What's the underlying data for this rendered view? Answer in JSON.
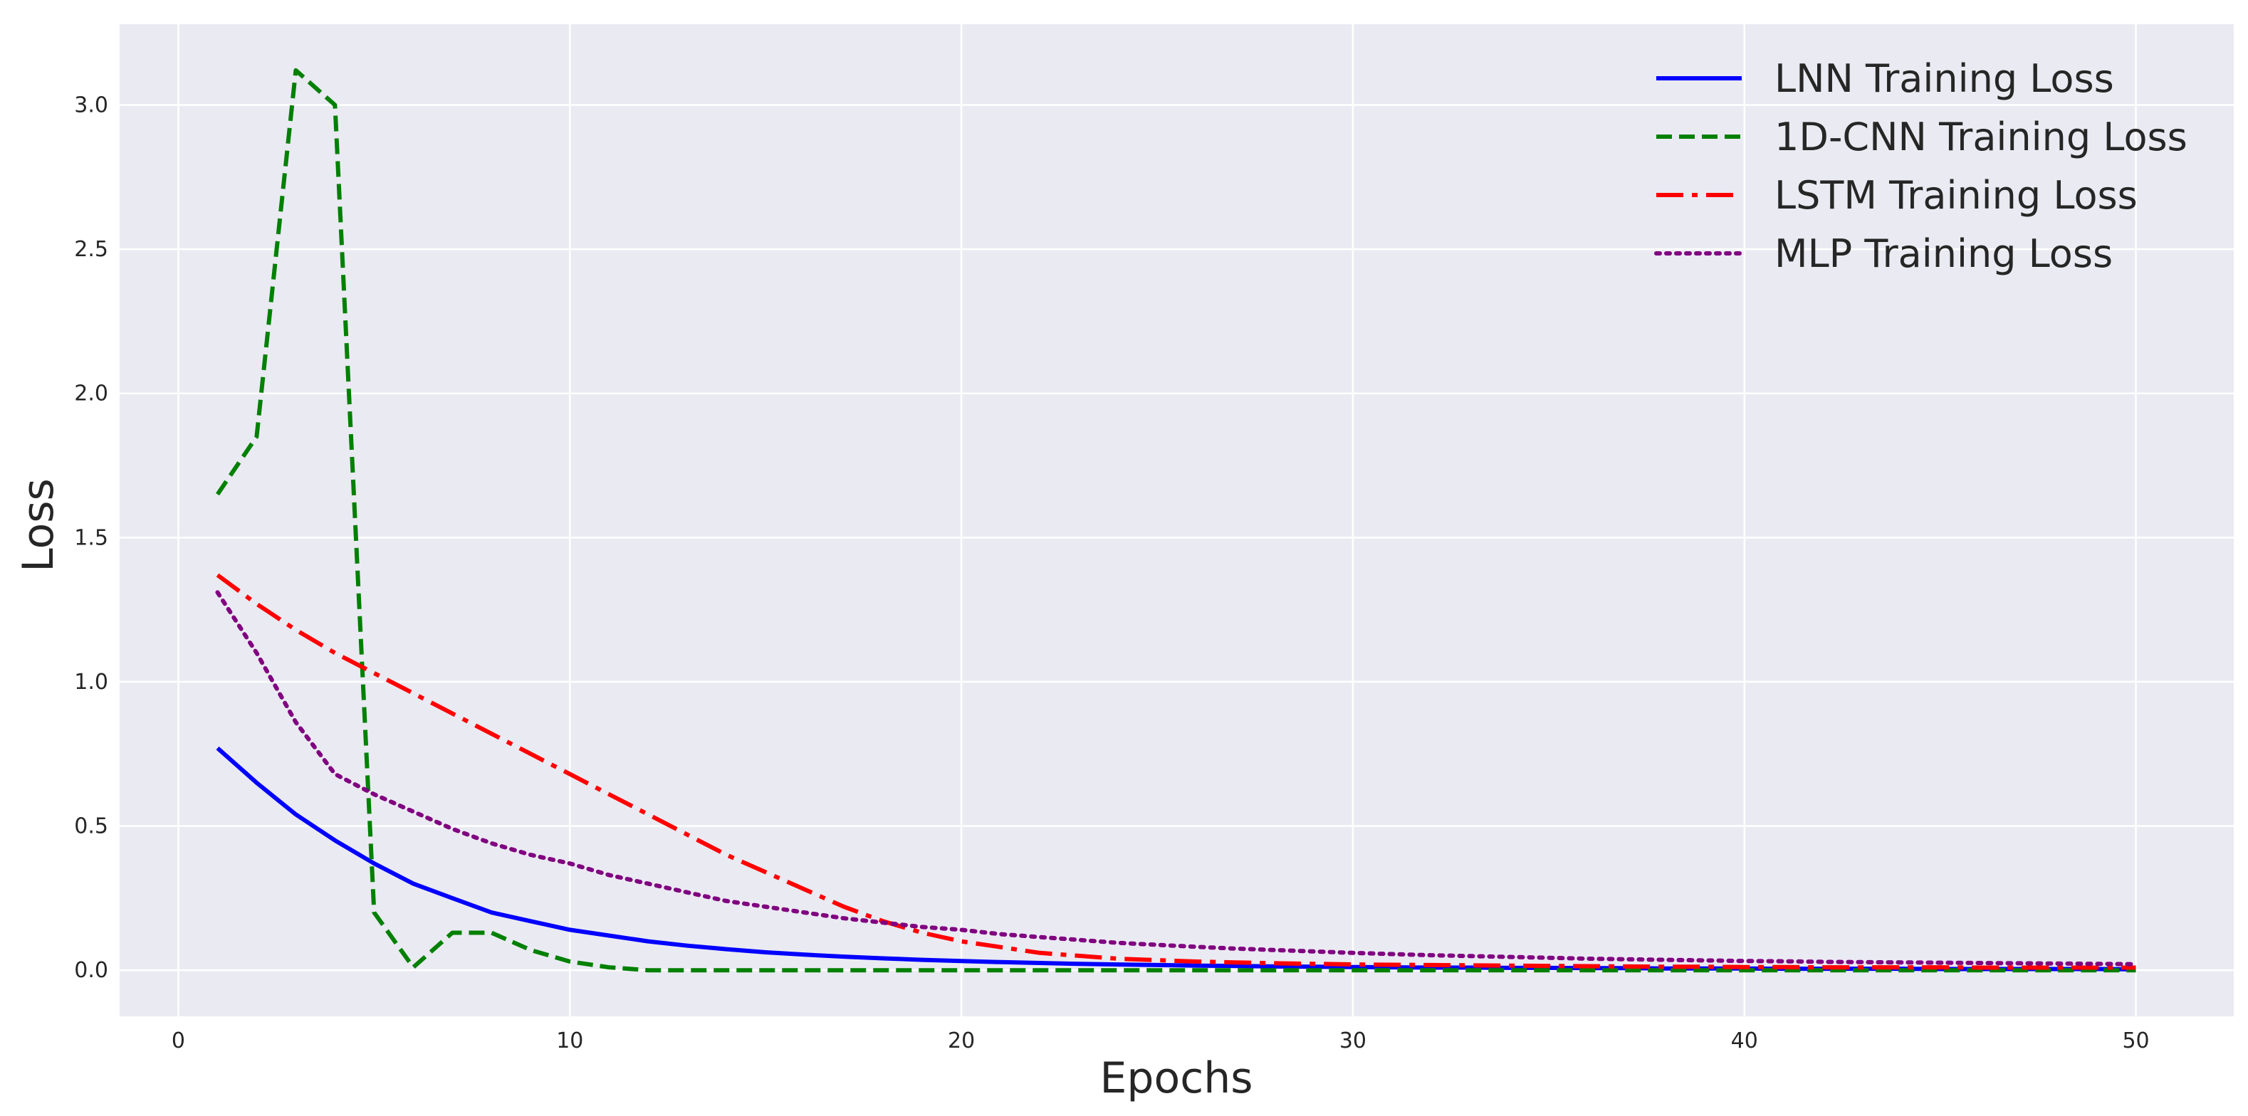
{
  "chart_data": {
    "type": "line",
    "title": "",
    "xlabel": "Epochs",
    "ylabel": "Loss",
    "xlim": [
      -1.5,
      52.5
    ],
    "ylim": [
      -0.16,
      3.28
    ],
    "xticks": [
      0,
      10,
      20,
      30,
      40,
      50
    ],
    "xtick_labels": [
      "0",
      "10",
      "20",
      "30",
      "40",
      "50"
    ],
    "yticks": [
      0.0,
      0.5,
      1.0,
      1.5,
      2.0,
      2.5,
      3.0
    ],
    "ytick_labels": [
      "0.0",
      "0.5",
      "1.0",
      "1.5",
      "2.0",
      "2.5",
      "3.0"
    ],
    "grid": true,
    "legend_position": "top-right",
    "background_color": "#eaeaf2",
    "grid_color": "#ffffff",
    "x": [
      1,
      2,
      3,
      4,
      5,
      6,
      7,
      8,
      9,
      10,
      11,
      12,
      13,
      14,
      15,
      16,
      17,
      18,
      19,
      20,
      21,
      22,
      23,
      24,
      25,
      26,
      27,
      28,
      29,
      30,
      31,
      32,
      33,
      34,
      35,
      36,
      37,
      38,
      39,
      40,
      41,
      42,
      43,
      44,
      45,
      46,
      47,
      48,
      49,
      50
    ],
    "series": [
      {
        "name": "LNN Training Loss",
        "color": "#0000ff",
        "style": "solid",
        "values": [
          0.77,
          0.65,
          0.54,
          0.45,
          0.37,
          0.3,
          0.25,
          0.2,
          0.17,
          0.14,
          0.12,
          0.1,
          0.085,
          0.073,
          0.062,
          0.054,
          0.047,
          0.041,
          0.036,
          0.032,
          0.028,
          0.025,
          0.022,
          0.02,
          0.018,
          0.016,
          0.015,
          0.013,
          0.012,
          0.011,
          0.01,
          0.009,
          0.009,
          0.008,
          0.008,
          0.007,
          0.007,
          0.006,
          0.006,
          0.006,
          0.005,
          0.005,
          0.005,
          0.005,
          0.004,
          0.004,
          0.004,
          0.004,
          0.004,
          0.003
        ]
      },
      {
        "name": "1D-CNN Training Loss",
        "color": "#008000",
        "style": "dashed",
        "values": [
          1.65,
          1.85,
          3.12,
          3.0,
          0.2,
          0.01,
          0.13,
          0.13,
          0.07,
          0.03,
          0.01,
          0.0,
          0.0,
          0.0,
          0.0,
          0.0,
          0.0,
          0.0,
          0.0,
          0.0,
          0.0,
          0.0,
          0.0,
          0.0,
          0.0,
          0.0,
          0.0,
          0.0,
          0.0,
          0.0,
          0.0,
          0.0,
          0.0,
          0.0,
          0.0,
          0.0,
          0.0,
          0.0,
          0.0,
          0.0,
          0.0,
          0.0,
          0.0,
          0.0,
          0.0,
          0.0,
          0.0,
          0.0,
          0.0,
          0.0
        ]
      },
      {
        "name": "LSTM Training Loss",
        "color": "#ff0000",
        "style": "dashdot",
        "values": [
          1.37,
          1.27,
          1.18,
          1.1,
          1.03,
          0.96,
          0.89,
          0.82,
          0.75,
          0.68,
          0.61,
          0.54,
          0.47,
          0.4,
          0.34,
          0.28,
          0.22,
          0.17,
          0.13,
          0.1,
          0.08,
          0.06,
          0.05,
          0.04,
          0.035,
          0.03,
          0.027,
          0.024,
          0.022,
          0.02,
          0.019,
          0.018,
          0.017,
          0.016,
          0.015,
          0.014,
          0.013,
          0.012,
          0.012,
          0.011,
          0.011,
          0.01,
          0.01,
          0.01,
          0.01,
          0.009,
          0.009,
          0.009,
          0.009,
          0.009
        ]
      },
      {
        "name": "MLP Training Loss",
        "color": "#800080",
        "style": "dotted",
        "values": [
          1.31,
          1.1,
          0.86,
          0.68,
          0.61,
          0.55,
          0.49,
          0.44,
          0.4,
          0.37,
          0.33,
          0.3,
          0.27,
          0.24,
          0.22,
          0.2,
          0.18,
          0.165,
          0.15,
          0.14,
          0.125,
          0.115,
          0.105,
          0.095,
          0.088,
          0.081,
          0.075,
          0.07,
          0.065,
          0.06,
          0.056,
          0.052,
          0.049,
          0.046,
          0.043,
          0.04,
          0.038,
          0.036,
          0.034,
          0.032,
          0.031,
          0.029,
          0.028,
          0.027,
          0.026,
          0.025,
          0.024,
          0.023,
          0.022,
          0.021
        ]
      }
    ]
  }
}
